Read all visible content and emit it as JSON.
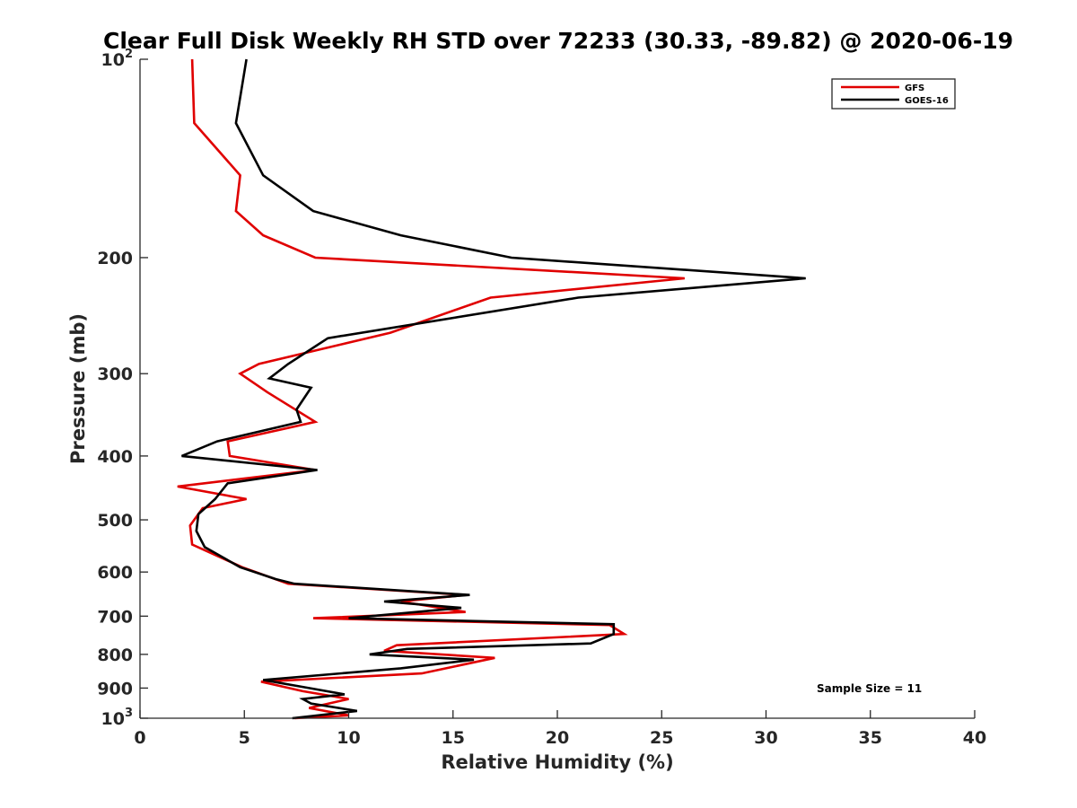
{
  "chart_data": {
    "type": "line",
    "title": "Clear Full Disk Weekly RH STD over 72233 (30.33, -89.82) @ 2020-06-19",
    "xlabel": "Relative Humidity (%)",
    "ylabel": "Pressure (mb)",
    "xlim": [
      0,
      40
    ],
    "ylim": [
      100,
      1000
    ],
    "y_scale": "log",
    "y_reversed": true,
    "x_ticks": [
      "0",
      "5",
      "10",
      "15",
      "20",
      "25",
      "30",
      "35",
      "40"
    ],
    "y_ticks": [
      {
        "value": 100,
        "base": "10",
        "exp": "2"
      },
      {
        "value": 200,
        "label": "200"
      },
      {
        "value": 300,
        "label": "300"
      },
      {
        "value": 400,
        "label": "400"
      },
      {
        "value": 500,
        "label": "500"
      },
      {
        "value": 600,
        "label": "600"
      },
      {
        "value": 700,
        "label": "700"
      },
      {
        "value": 800,
        "label": "800"
      },
      {
        "value": 900,
        "label": "900"
      },
      {
        "value": 1000,
        "base": "10",
        "exp": "3"
      }
    ],
    "legend_position": "top-right",
    "grid": false,
    "annotation": "Sample Size = 11",
    "series": [
      {
        "name": "GFS",
        "color": "#e00000",
        "points": [
          [
            2.5,
            100
          ],
          [
            2.6,
            125
          ],
          [
            4.8,
            150
          ],
          [
            4.6,
            170
          ],
          [
            5.9,
            185
          ],
          [
            8.4,
            200
          ],
          [
            26.1,
            215
          ],
          [
            16.8,
            230
          ],
          [
            12.0,
            260
          ],
          [
            5.7,
            290
          ],
          [
            4.8,
            300
          ],
          [
            6.1,
            320
          ],
          [
            8.4,
            355
          ],
          [
            4.2,
            380
          ],
          [
            4.3,
            400
          ],
          [
            8.4,
            420
          ],
          [
            1.8,
            445
          ],
          [
            5.1,
            465
          ],
          [
            3.0,
            480
          ],
          [
            2.4,
            510
          ],
          [
            2.5,
            545
          ],
          [
            4.9,
            590
          ],
          [
            7.1,
            625
          ],
          [
            15.6,
            650
          ],
          [
            12.5,
            665
          ],
          [
            15.6,
            690
          ],
          [
            8.3,
            705
          ],
          [
            22.5,
            722
          ],
          [
            23.2,
            745
          ],
          [
            12.3,
            775
          ],
          [
            11.7,
            790
          ],
          [
            17.0,
            810
          ],
          [
            13.5,
            855
          ],
          [
            5.8,
            880
          ],
          [
            7.8,
            910
          ],
          [
            10.0,
            935
          ],
          [
            8.1,
            965
          ],
          [
            10.0,
            990
          ],
          [
            7.4,
            1000
          ]
        ]
      },
      {
        "name": "GOES-16",
        "color": "#000000",
        "points": [
          [
            5.1,
            100
          ],
          [
            4.6,
            125
          ],
          [
            5.9,
            150
          ],
          [
            8.3,
            170
          ],
          [
            12.5,
            185
          ],
          [
            17.8,
            200
          ],
          [
            31.9,
            215
          ],
          [
            21.0,
            230
          ],
          [
            9.0,
            265
          ],
          [
            7.1,
            290
          ],
          [
            6.2,
            305
          ],
          [
            8.2,
            315
          ],
          [
            7.5,
            340
          ],
          [
            7.7,
            355
          ],
          [
            3.7,
            380
          ],
          [
            2.0,
            400
          ],
          [
            8.5,
            420
          ],
          [
            4.2,
            440
          ],
          [
            3.6,
            465
          ],
          [
            2.8,
            490
          ],
          [
            2.7,
            520
          ],
          [
            3.1,
            550
          ],
          [
            4.8,
            590
          ],
          [
            6.5,
            615
          ],
          [
            7.4,
            625
          ],
          [
            15.8,
            650
          ],
          [
            11.7,
            665
          ],
          [
            15.4,
            680
          ],
          [
            10.0,
            705
          ],
          [
            22.7,
            720
          ],
          [
            22.7,
            745
          ],
          [
            21.6,
            770
          ],
          [
            12.8,
            785
          ],
          [
            11.0,
            800
          ],
          [
            16.0,
            815
          ],
          [
            12.5,
            840
          ],
          [
            5.9,
            875
          ],
          [
            8.1,
            900
          ],
          [
            9.8,
            920
          ],
          [
            7.8,
            935
          ],
          [
            8.2,
            950
          ],
          [
            10.4,
            975
          ],
          [
            7.3,
            1000
          ]
        ]
      }
    ]
  }
}
